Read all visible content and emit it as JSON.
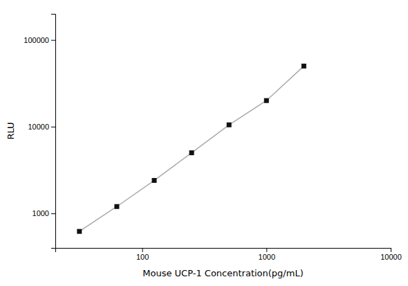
{
  "chart_data": {
    "type": "line",
    "x": [
      31.25,
      62.5,
      125,
      250,
      500,
      1000,
      2000
    ],
    "values": [
      620,
      1200,
      2400,
      5000,
      10500,
      20000,
      50000
    ],
    "xlabel": "Mouse UCP-1 Concentration(pg/mL)",
    "ylabel": "RLU",
    "xlim": [
      20,
      10000
    ],
    "ylim": [
      400,
      200000
    ],
    "xticks": [
      100,
      1000,
      10000
    ],
    "yticks": [
      1000,
      10000,
      100000
    ],
    "log": true,
    "grid": false,
    "color": "#aaaaaa",
    "marker": "square"
  }
}
